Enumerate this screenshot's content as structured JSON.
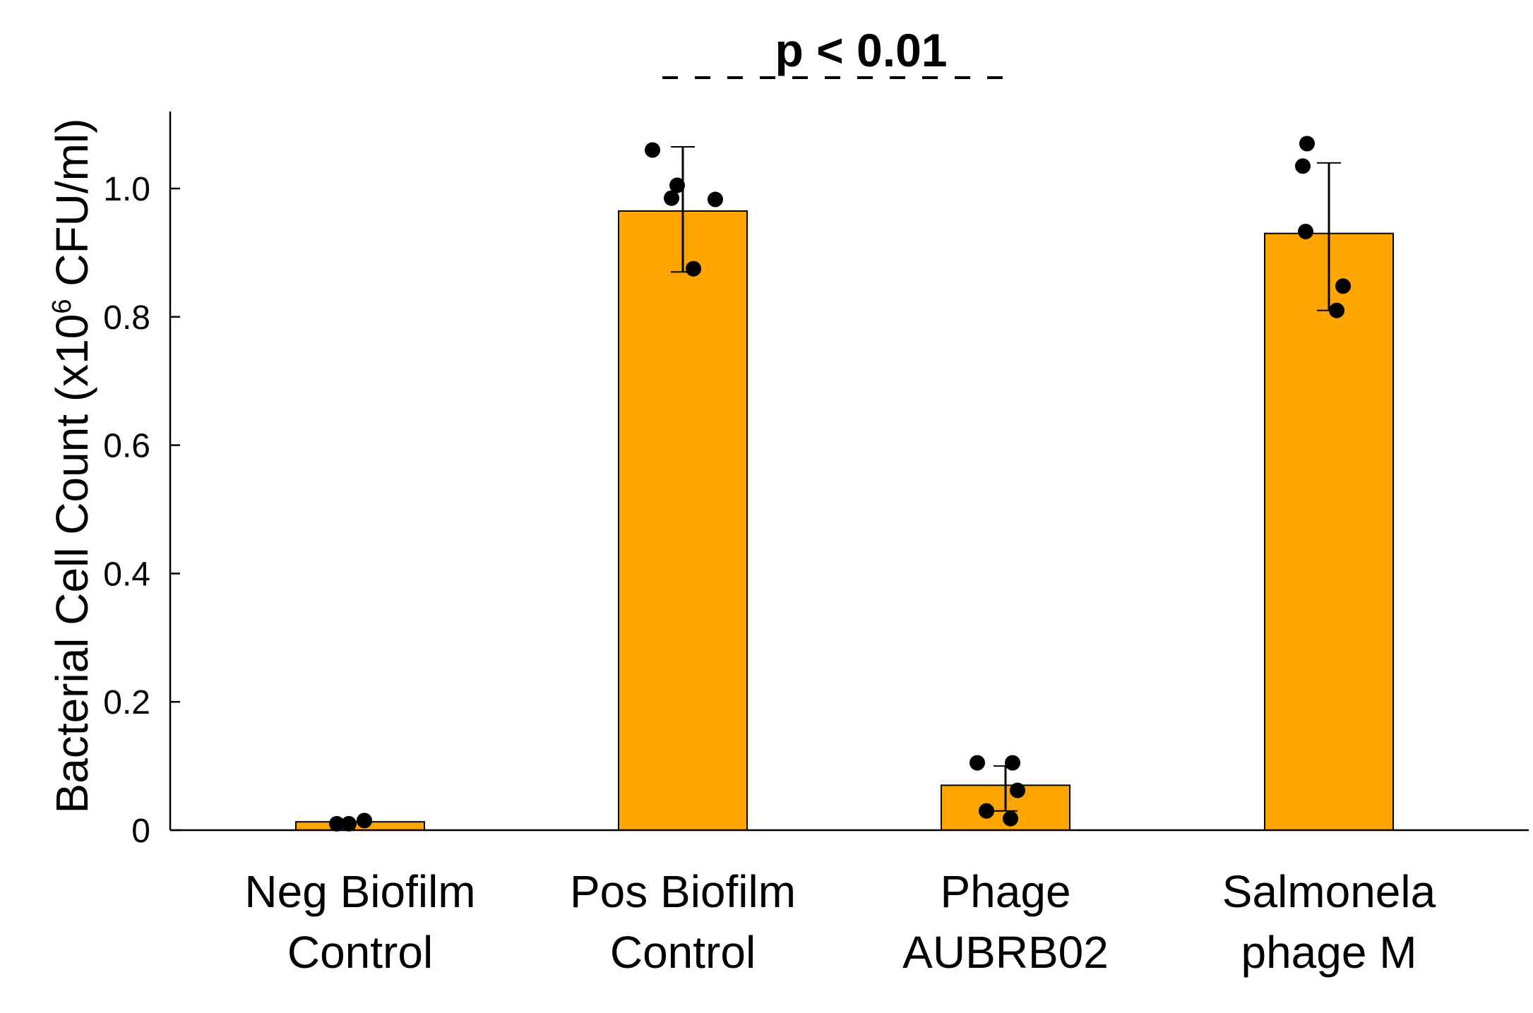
{
  "chart_data": {
    "type": "bar",
    "title": "",
    "ylabel_main": "Bacterial Cell Count (x10",
    "ylabel_exp": "6",
    "ylabel_tail": " CFU/ml)",
    "categories": [
      [
        "Neg Biofilm",
        "Control"
      ],
      [
        "Pos Biofilm",
        "Control"
      ],
      [
        "Phage",
        "AUBRB02"
      ],
      [
        "Salmonela",
        "phage M"
      ]
    ],
    "values": [
      0.013,
      0.965,
      0.07,
      0.93
    ],
    "error_low": [
      0.013,
      0.87,
      0.03,
      0.81
    ],
    "error_high": [
      0.013,
      1.065,
      0.1,
      1.04
    ],
    "points": [
      [
        0.01,
        0.01,
        0.015
      ],
      [
        1.06,
        1.005,
        0.985,
        0.983,
        0.875
      ],
      [
        0.105,
        0.105,
        0.062,
        0.03,
        0.018
      ],
      [
        1.07,
        1.035,
        0.933,
        0.848,
        0.81
      ]
    ],
    "ylim": [
      0,
      1.12
    ],
    "yticks": [
      0,
      0.2,
      0.4,
      0.6,
      0.8,
      1.0
    ],
    "ytick_labels": [
      "0",
      "0.2",
      "0.4",
      "0.6",
      "0.8",
      "1.0"
    ],
    "bar_color": "#FFA500",
    "significance": {
      "label": "p < 0.01",
      "from": 1,
      "to": 2,
      "color": "#FF0000"
    }
  }
}
